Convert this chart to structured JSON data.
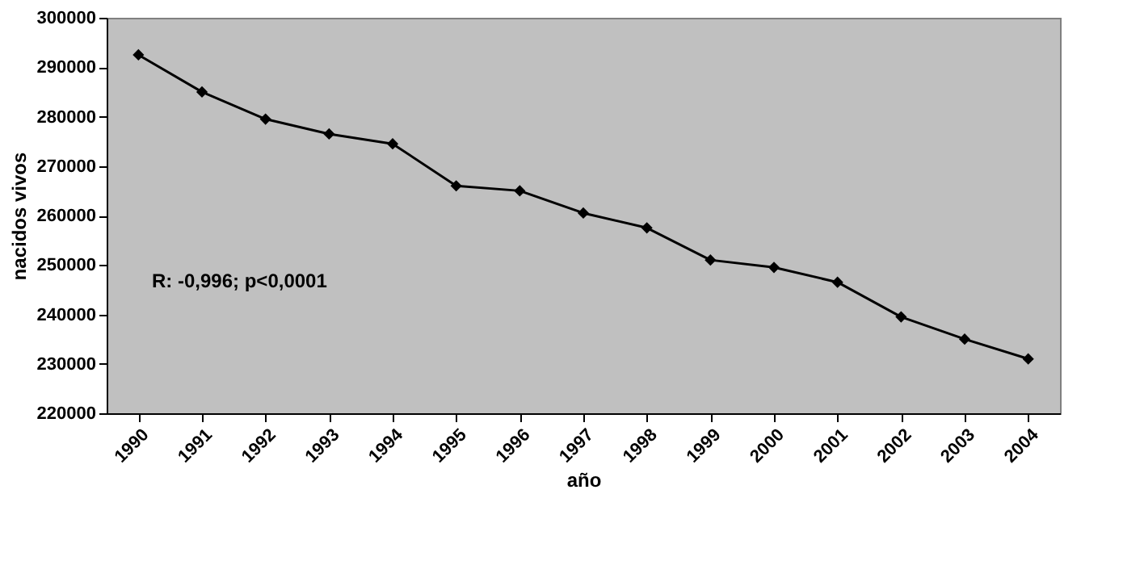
{
  "chart_data": {
    "type": "line",
    "xlabel": "año",
    "ylabel": "nacidos vivos",
    "categories": [
      "1990",
      "1991",
      "1992",
      "1993",
      "1994",
      "1995",
      "1996",
      "1997",
      "1998",
      "1999",
      "2000",
      "2001",
      "2002",
      "2003",
      "2004"
    ],
    "series": [
      {
        "color": "#000000",
        "values": [
          292500,
          285000,
          279500,
          276500,
          274500,
          266000,
          265000,
          260500,
          257500,
          251000,
          249500,
          246500,
          239500,
          235000,
          231000
        ]
      }
    ],
    "ylim": [
      220000,
      300000
    ],
    "yticks": [
      220000,
      230000,
      240000,
      250000,
      260000,
      270000,
      280000,
      290000,
      300000
    ],
    "grid": false,
    "marker": "diamond",
    "line_style": "solid",
    "legend": false,
    "annotations": [
      "R: -0,996; p<0,0001"
    ]
  }
}
